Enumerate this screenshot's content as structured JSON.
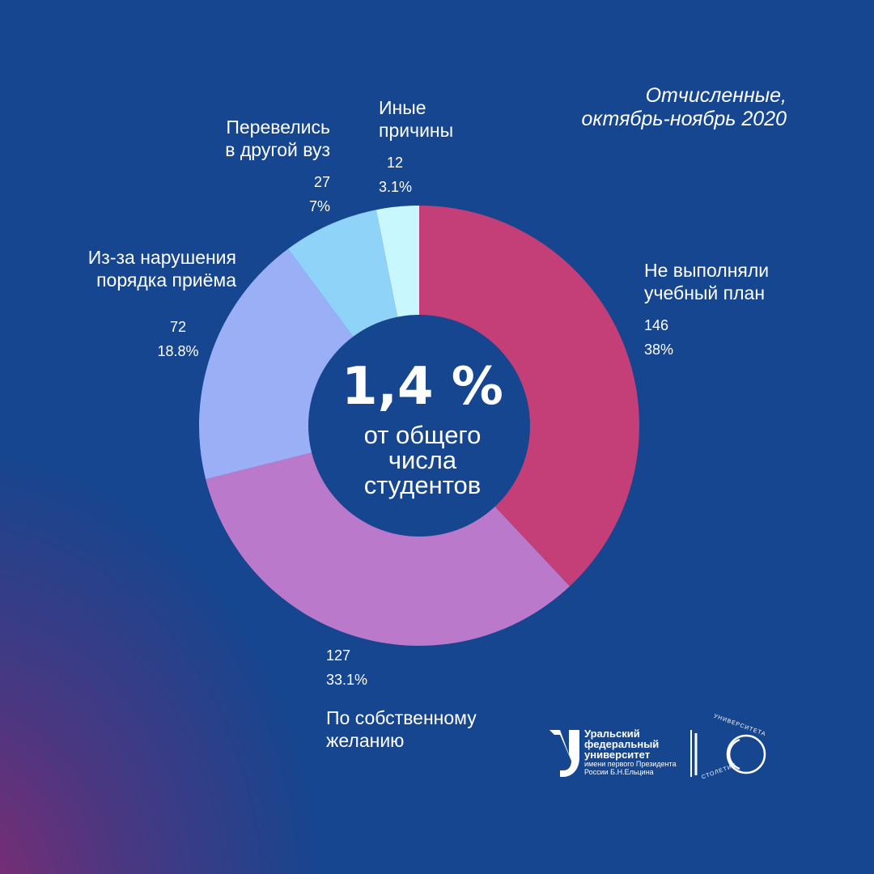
{
  "title": {
    "line1": "Отчисленные,",
    "line2": "октябрь-ноябрь 2020"
  },
  "center": {
    "big": "1,4 %",
    "line1": "от общего",
    "line2": "числа",
    "line3": "студентов"
  },
  "chart_data": {
    "type": "pie",
    "donut": true,
    "title": "Отчисленные, октябрь-ноябрь 2020",
    "slices": [
      {
        "label_lines": [
          "Не выполняли",
          "учебный план"
        ],
        "value": 146,
        "value_label": "146",
        "percent_label": "38%",
        "color": "#c43e78"
      },
      {
        "label_lines": [
          "По собственному",
          "желанию"
        ],
        "value": 127,
        "value_label": "127",
        "percent_label": "33.1%",
        "color": "#bb79cc"
      },
      {
        "label_lines": [
          "Из-за нарушения",
          "порядка приёма"
        ],
        "value": 72,
        "value_label": "72",
        "percent_label": "18.8%",
        "color": "#9aaff6"
      },
      {
        "label_lines": [
          "Перевелись",
          "в другой вуз"
        ],
        "value": 27,
        "value_label": "27",
        "percent_label": "7%",
        "color": "#90d3f8"
      },
      {
        "label_lines": [
          "Иные",
          "причины"
        ],
        "value": 12,
        "value_label": "12",
        "percent_label": "3.1%",
        "color": "#c8f8fd"
      }
    ]
  },
  "colors": {
    "background": "#15468f",
    "gradient_corner": "#8c286e",
    "text": "#ffffff"
  },
  "logo": {
    "line1": "Уральский",
    "line2": "федеральный",
    "line3": "университет",
    "line4": "имени первого Президента",
    "line5": "России Б.Н.Ельцина",
    "seal_top": "УНИВЕРСИТЕТА",
    "seal_bottom": "СТОЛЕТИЕ"
  }
}
